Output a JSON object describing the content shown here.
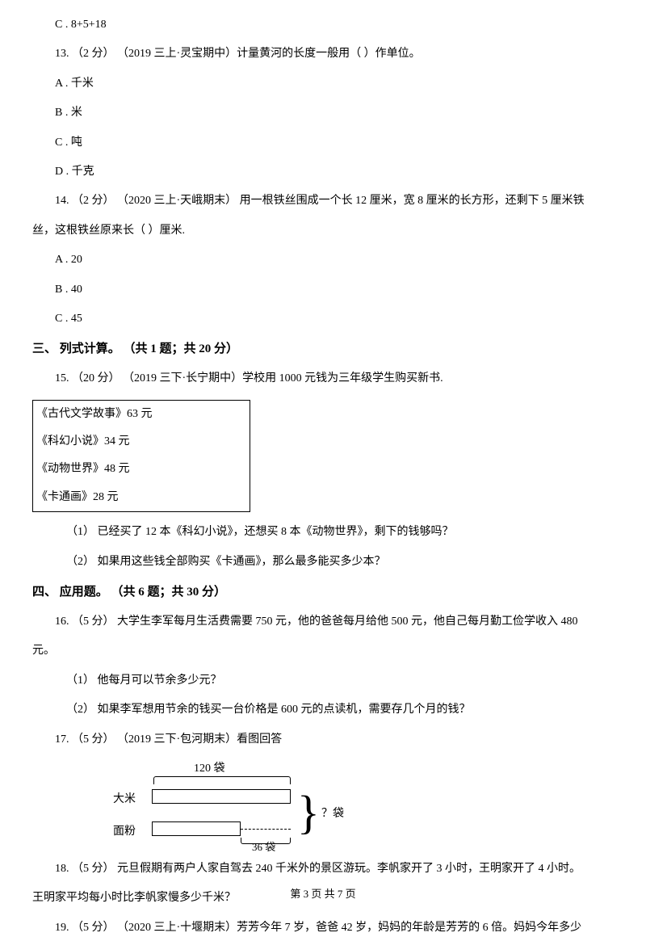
{
  "q12_option_c": "C . 8+5+18",
  "q13": {
    "stem": "13. （2 分） （2019 三上·灵宝期中）计量黄河的长度一般用（    ）作单位。",
    "a": "A . 千米",
    "b": "B . 米",
    "c": "C . 吨",
    "d": "D . 千克"
  },
  "q14": {
    "stem_1": "14. （2 分） （2020 三上·天峨期末） 用一根铁丝围成一个长 12 厘米，宽 8 厘米的长方形，还剩下 5 厘米铁",
    "stem_2": "丝，这根铁丝原来长（    ）厘米.",
    "a": "A . 20",
    "b": "B . 40",
    "c": "C . 45"
  },
  "section3": "三、 列式计算。 （共 1 题；共 20 分）",
  "q15": {
    "stem": "15. （20 分） （2019 三下·长宁期中）学校用 1000 元钱为三年级学生购买新书.",
    "book1": "《古代文学故事》63 元",
    "book2": "《科幻小说》34 元",
    "book3": "《动物世界》48 元",
    "book4": "《卡通画》28 元",
    "sub1": "（1） 已经买了 12 本《科幻小说》，还想买 8 本《动物世界》，剩下的钱够吗？",
    "sub2": "（2） 如果用这些钱全部购买《卡通画》，那么最多能买多少本？"
  },
  "section4": "四、 应用题。 （共 6 题；共 30 分）",
  "q16": {
    "stem_1": "16. （5 分）  大学生李军每月生活费需要 750 元，他的爸爸每月给他 500 元，他自己每月勤工俭学收入 480",
    "stem_2": "元。",
    "sub1": "（1） 他每月可以节余多少元？",
    "sub2": "（2） 如果李军想用节余的钱买一台价格是 600 元的点读机，需要存几个月的钱？"
  },
  "q17": {
    "stem": "17. （5 分） （2019 三下·包河期末）看图回答",
    "diagram": {
      "top_label": "120 袋",
      "left_label_1": "大米",
      "left_label_2": "面粉",
      "bottom_label": "36 袋",
      "question_label": "？袋"
    }
  },
  "q18": {
    "stem_1": "18. （5 分）  元旦假期有两户人家自驾去 240 千米外的景区游玩。李帆家开了 3 小时，王明家开了 4 小时。",
    "stem_2": "王明家平均每小时比李帆家慢多少千米？"
  },
  "q19": {
    "stem": "19. （5 分） （2020 三上·十堰期末）芳芳今年 7 岁，爸爸 42 岁，妈妈的年龄是芳芳的 6 倍。妈妈今年多少"
  },
  "footer": "第 3 页 共 7 页"
}
